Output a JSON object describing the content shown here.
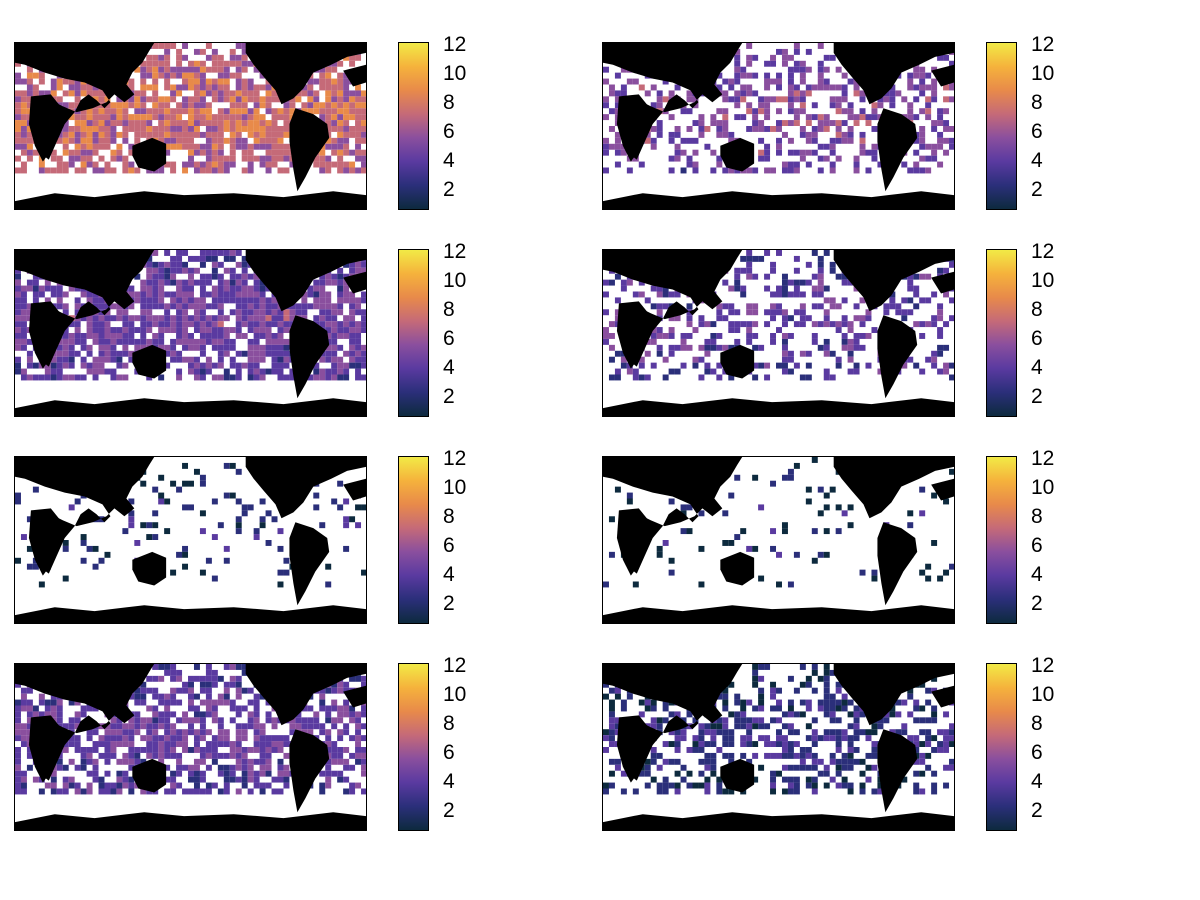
{
  "colorbar": {
    "ticks": [
      "12",
      "10",
      "8",
      "6",
      "4",
      "2"
    ],
    "tick_values": [
      12,
      10,
      8,
      6,
      4,
      2
    ],
    "range": [
      1,
      12
    ],
    "colormap": [
      "#0d2a3e",
      "#2b2f7a",
      "#5a3aa0",
      "#8a4f9e",
      "#c56a78",
      "#e88a4a",
      "#f5b23c",
      "#f2ea46"
    ]
  },
  "colors": {
    "land": "#000000",
    "missing": "#ffffff"
  },
  "panels": [
    {
      "id": 1,
      "coverage": 0.95,
      "mean_level": 6.5
    },
    {
      "id": 2,
      "coverage": 0.55,
      "mean_level": 4.5
    },
    {
      "id": 3,
      "coverage": 0.9,
      "mean_level": 4.0
    },
    {
      "id": 4,
      "coverage": 0.45,
      "mean_level": 3.5
    },
    {
      "id": 5,
      "coverage": 0.15,
      "mean_level": 1.5
    },
    {
      "id": 6,
      "coverage": 0.1,
      "mean_level": 1.3
    },
    {
      "id": 7,
      "coverage": 0.75,
      "mean_level": 3.8
    },
    {
      "id": 8,
      "coverage": 0.55,
      "mean_level": 2.0
    }
  ]
}
